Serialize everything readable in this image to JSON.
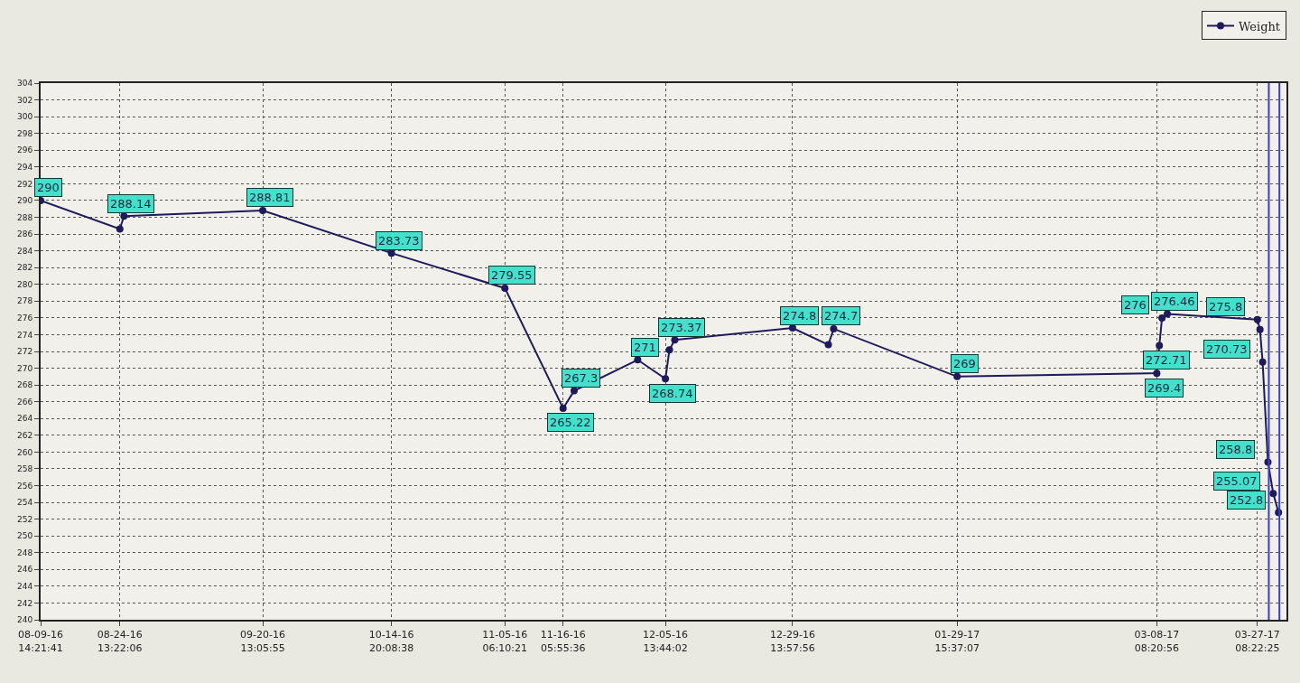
{
  "chart_data": {
    "type": "line",
    "legend": "top right",
    "grid": true,
    "marker": "circle",
    "line_style": "solid",
    "ylim": [
      240,
      304
    ],
    "yticks": [
      240,
      242,
      244,
      246,
      248,
      250,
      252,
      254,
      256,
      258,
      260,
      262,
      264,
      266,
      268,
      270,
      272,
      274,
      276,
      278,
      280,
      282,
      284,
      286,
      288,
      290,
      292,
      294,
      296,
      298,
      300,
      302,
      304
    ],
    "xlim": [
      "2016-08-09T14:21",
      "2017-04-01T20:00"
    ],
    "xticks": [
      {
        "value": "2016-08-09T14:21:41",
        "label": "08-09-16\n14:21:41"
      },
      {
        "value": "2016-08-24T13:22:06",
        "label": "08-24-16\n13:22:06"
      },
      {
        "value": "2016-09-20T13:05:55",
        "label": "09-20-16\n13:05:55"
      },
      {
        "value": "2016-10-14T20:08:38",
        "label": "10-14-16\n20:08:38"
      },
      {
        "value": "2016-11-05T06:10:21",
        "label": "11-05-16\n06:10:21"
      },
      {
        "value": "2016-11-16T05:55:36",
        "label": "11-16-16\n05:55:36"
      },
      {
        "value": "2016-12-05T13:44:02",
        "label": "12-05-16\n13:44:02"
      },
      {
        "value": "2016-12-29T13:57:56",
        "label": "12-29-16\n13:57:56"
      },
      {
        "value": "2017-01-29T15:37:07",
        "label": "01-29-17\n15:37:07"
      },
      {
        "value": "2017-03-08T08:20:56",
        "label": "03-08-17\n08:20:56"
      },
      {
        "value": "2017-03-27T08:22:25",
        "label": "03-27-17\n08:22:25"
      }
    ],
    "ref_lines": [
      {
        "axis": "x",
        "value": "2017-03-29T12:00",
        "color": "#3a3fc0"
      },
      {
        "axis": "x",
        "value": "2017-03-31T12:00",
        "color": "#3a3fc0"
      }
    ],
    "series": [
      {
        "name": "Weight",
        "color": "#1f1a5a",
        "x": [
          "2016-08-09T14:21:41",
          "2016-08-24T13:22:06",
          "2016-08-25T08:00",
          "2016-09-20T13:05:55",
          "2016-10-14T20:08:38",
          "2016-11-05T06:10:21",
          "2016-11-16T05:55:36",
          "2016-11-18T08:00",
          "2016-11-30T08:00",
          "2016-12-05T13:44:02",
          "2016-12-06T08:00",
          "2016-12-07T08:00",
          "2016-12-29T13:57:56",
          "2017-01-05T08:00",
          "2017-01-06T08:00",
          "2017-01-29T15:37:07",
          "2017-03-08T08:20:56",
          "2017-03-08T20:00",
          "2017-03-09T08:00",
          "2017-03-10T08:00",
          "2017-03-27T08:22:25",
          "2017-03-27T20:00",
          "2017-03-28T08:00",
          "2017-03-29T08:00",
          "2017-03-30T08:00",
          "2017-03-31T08:00"
        ],
        "values": [
          290,
          286.6,
          288.14,
          288.81,
          283.73,
          279.55,
          265.22,
          267.3,
          271,
          268.74,
          272.2,
          273.37,
          274.8,
          272.8,
          274.7,
          269,
          269.4,
          272.71,
          276,
          276.46,
          275.8,
          274.6,
          270.73,
          258.8,
          255.07,
          252.8
        ],
        "value_labels": [
          "290",
          null,
          "288.14",
          "288.81",
          "283.73",
          "279.55",
          "265.22",
          "267.3",
          "271",
          "268.74",
          null,
          "273.37",
          "274.8",
          null,
          "274.7",
          "269",
          "269.4",
          "272.71",
          "276",
          "276.46",
          "275.8",
          null,
          "270.73",
          "258.8",
          "255.07",
          "252.8"
        ]
      }
    ]
  }
}
